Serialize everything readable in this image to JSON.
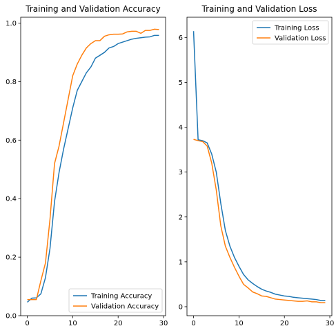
{
  "chart_data": [
    {
      "type": "line",
      "title": "Training and Validation Accuracy",
      "xlim": [
        -1.45,
        30.45
      ],
      "ylim": [
        0.0,
        1.02
      ],
      "xticks": [
        0,
        10,
        20,
        30
      ],
      "yticks": [
        0.0,
        0.2,
        0.4,
        0.6,
        0.8,
        1.0
      ],
      "ytick_format": 1,
      "legend_position": "lower-right",
      "series": [
        {
          "name": "Training Accuracy",
          "color": "#1f77b4",
          "x": [
            0,
            1,
            2,
            3,
            4,
            5,
            6,
            7,
            8,
            9,
            10,
            11,
            12,
            13,
            14,
            15,
            16,
            17,
            18,
            19,
            20,
            21,
            22,
            23,
            24,
            25,
            26,
            27,
            28,
            29
          ],
          "y": [
            0.046,
            0.06,
            0.061,
            0.075,
            0.13,
            0.23,
            0.39,
            0.49,
            0.57,
            0.64,
            0.71,
            0.77,
            0.8,
            0.83,
            0.85,
            0.88,
            0.89,
            0.9,
            0.915,
            0.92,
            0.93,
            0.935,
            0.94,
            0.945,
            0.948,
            0.95,
            0.952,
            0.953,
            0.958,
            0.958
          ]
        },
        {
          "name": "Validation Accuracy",
          "color": "#ff7f0e",
          "x": [
            0,
            1,
            2,
            3,
            4,
            5,
            6,
            7,
            8,
            9,
            10,
            11,
            12,
            13,
            14,
            15,
            16,
            17,
            18,
            19,
            20,
            21,
            22,
            23,
            24,
            25,
            26,
            27,
            28,
            29
          ],
          "y": [
            0.055,
            0.055,
            0.055,
            0.12,
            0.18,
            0.33,
            0.52,
            0.58,
            0.66,
            0.74,
            0.82,
            0.86,
            0.89,
            0.915,
            0.93,
            0.94,
            0.94,
            0.955,
            0.96,
            0.962,
            0.962,
            0.963,
            0.97,
            0.972,
            0.972,
            0.965,
            0.975,
            0.975,
            0.979,
            0.978
          ]
        }
      ]
    },
    {
      "type": "line",
      "title": "Training and Validation Loss",
      "xlim": [
        -1.45,
        30.45
      ],
      "ylim": [
        -0.2,
        6.45
      ],
      "xticks": [
        0,
        10,
        20,
        30
      ],
      "yticks": [
        0,
        1,
        2,
        3,
        4,
        5,
        6
      ],
      "ytick_format": 0,
      "legend_position": "upper-right",
      "series": [
        {
          "name": "Training Loss",
          "color": "#1f77b4",
          "x": [
            0,
            1,
            2,
            3,
            4,
            5,
            6,
            7,
            8,
            9,
            10,
            11,
            12,
            13,
            14,
            15,
            16,
            17,
            18,
            19,
            20,
            21,
            22,
            23,
            24,
            25,
            26,
            27,
            28,
            29
          ],
          "y": [
            6.14,
            3.72,
            3.7,
            3.65,
            3.4,
            3.0,
            2.3,
            1.7,
            1.35,
            1.1,
            0.9,
            0.72,
            0.6,
            0.52,
            0.45,
            0.39,
            0.35,
            0.32,
            0.28,
            0.26,
            0.24,
            0.23,
            0.21,
            0.2,
            0.19,
            0.18,
            0.17,
            0.16,
            0.14,
            0.14
          ]
        },
        {
          "name": "Validation Loss",
          "color": "#ff7f0e",
          "x": [
            0,
            1,
            2,
            3,
            4,
            5,
            6,
            7,
            8,
            9,
            10,
            11,
            12,
            13,
            14,
            15,
            16,
            17,
            18,
            19,
            20,
            21,
            22,
            23,
            24,
            25,
            26,
            27,
            28,
            29
          ],
          "y": [
            3.73,
            3.7,
            3.68,
            3.58,
            3.2,
            2.6,
            1.8,
            1.35,
            1.1,
            0.88,
            0.68,
            0.5,
            0.42,
            0.33,
            0.29,
            0.24,
            0.23,
            0.2,
            0.17,
            0.16,
            0.15,
            0.14,
            0.13,
            0.12,
            0.12,
            0.13,
            0.11,
            0.11,
            0.09,
            0.09
          ]
        }
      ]
    }
  ]
}
